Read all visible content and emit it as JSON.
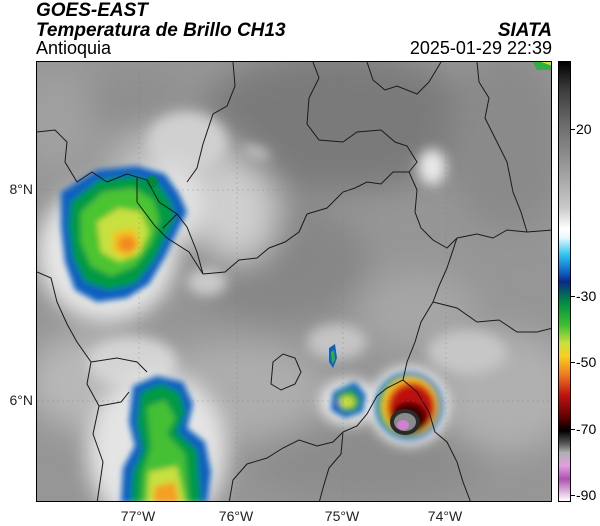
{
  "header": {
    "satellite": "GOES-EAST",
    "product": "Temperatura de Brillo CH13",
    "region": "Antioquia",
    "source": "SIATA",
    "datetime": "2025-01-29 22:39"
  },
  "map": {
    "latitude_labels": [
      "8°N",
      "6°N"
    ],
    "longitude_labels": [
      "77°W",
      "76°W",
      "75°W",
      "74°W"
    ]
  },
  "colorbar": {
    "tick_labels": [
      "20",
      "-30",
      "-50",
      "-70",
      "-90"
    ]
  }
}
